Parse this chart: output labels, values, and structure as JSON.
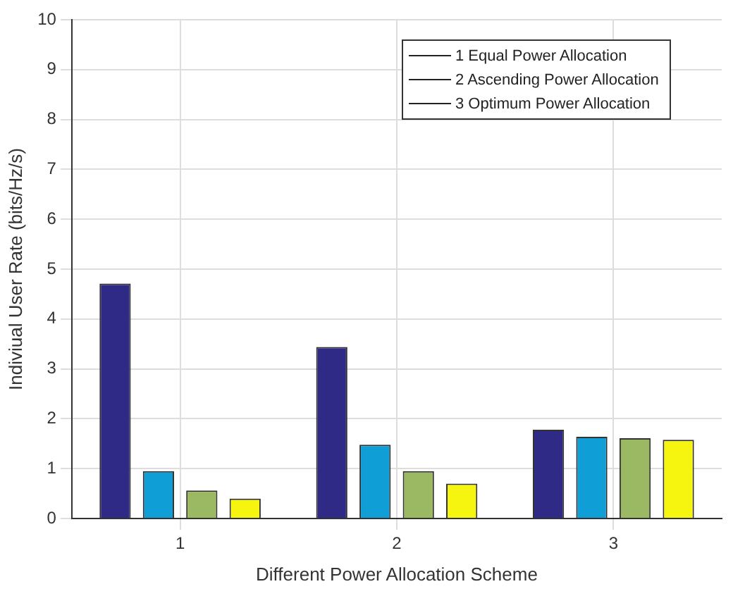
{
  "chart_data": {
    "type": "bar",
    "xlabel": "Different Power Allocation Scheme",
    "ylabel": "Indiviual User Rate (bits/Hz/s)",
    "categories": [
      "1",
      "2",
      "3"
    ],
    "series": [
      {
        "color": "#2e2a86",
        "values": [
          4.71,
          3.44,
          1.78
        ]
      },
      {
        "color": "#0f9ed5",
        "values": [
          0.95,
          1.48,
          1.64
        ]
      },
      {
        "color": "#9bb863",
        "values": [
          0.56,
          0.95,
          1.61
        ]
      },
      {
        "color": "#f5f50f",
        "values": [
          0.4,
          0.7,
          1.58
        ]
      }
    ],
    "ylim": [
      0,
      10
    ],
    "yticks": [
      0,
      1,
      2,
      3,
      4,
      5,
      6,
      7,
      8,
      9,
      10
    ],
    "grid": true,
    "annotations": [
      "1  Equal Power Allocation",
      "2  Ascending Power Allocation",
      "3  Optimum Power Allocation"
    ]
  }
}
